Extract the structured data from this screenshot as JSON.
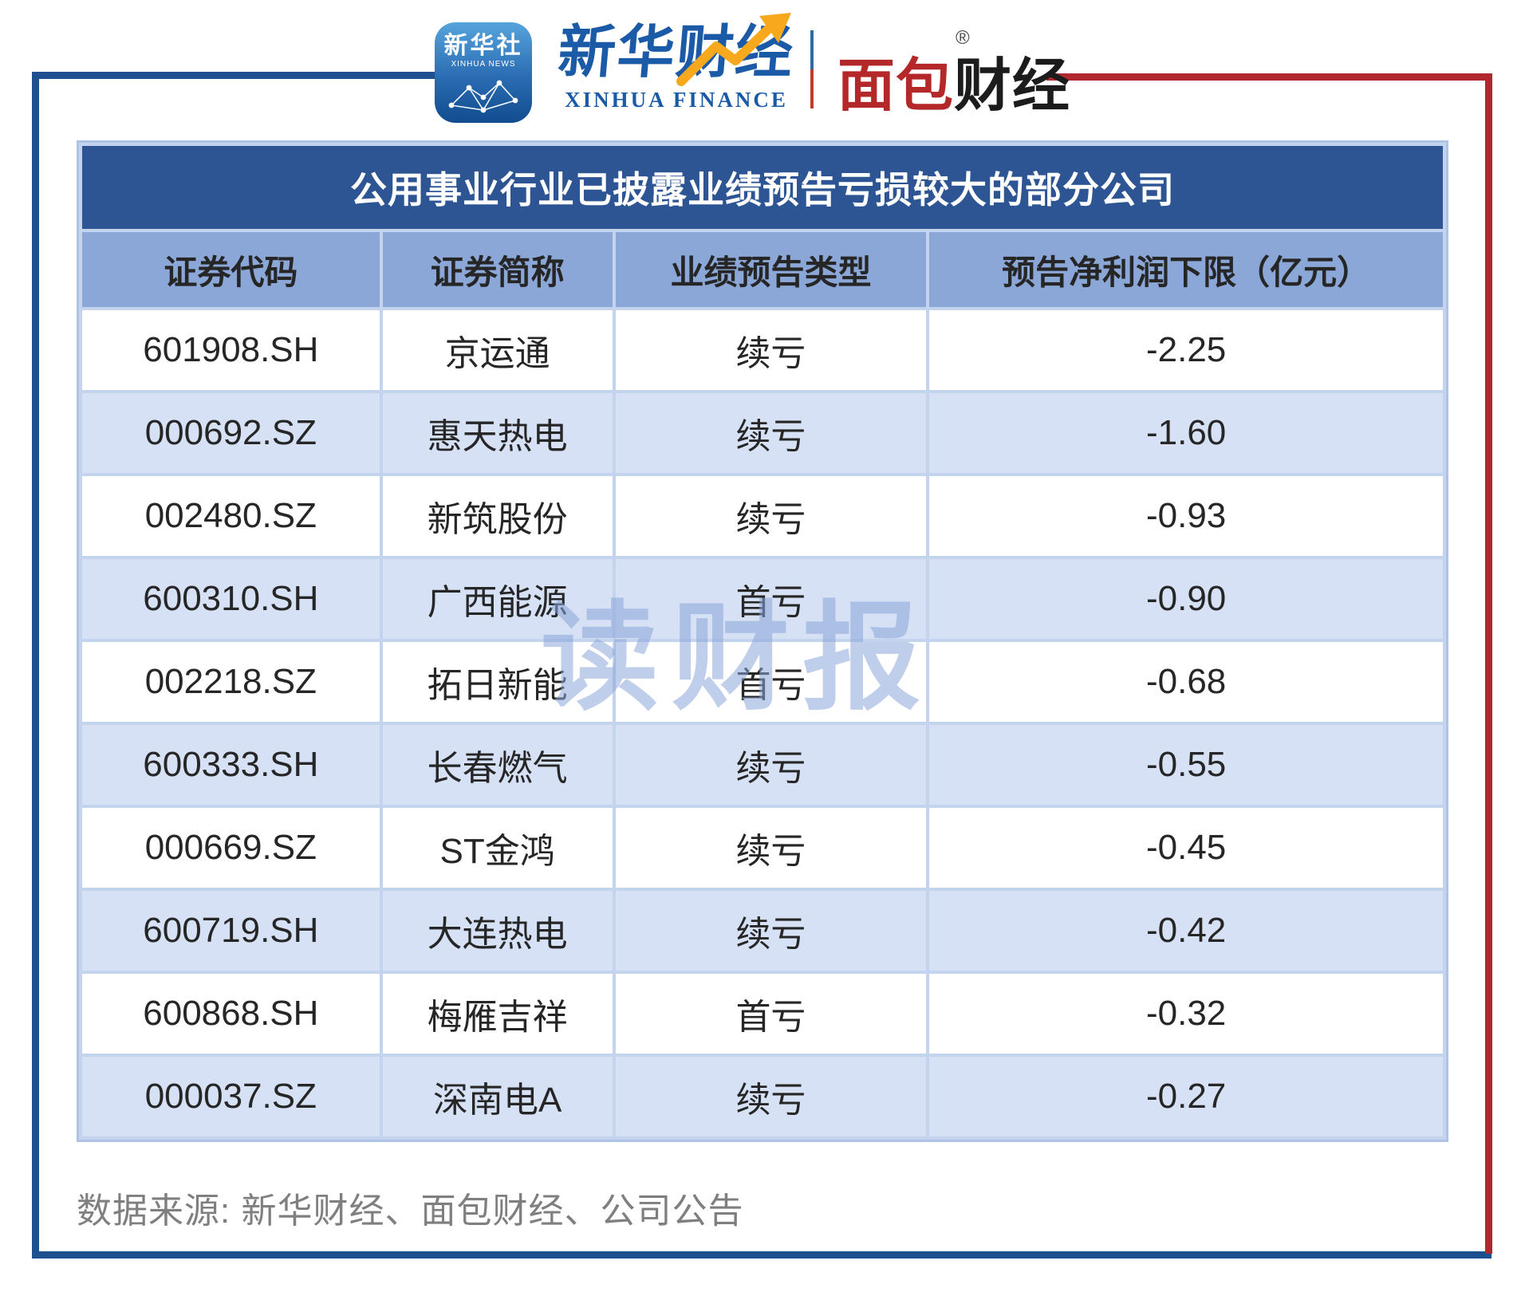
{
  "brand": {
    "xinhua_app": {
      "cn": "新华社",
      "en": "XINHUA NEWS"
    },
    "xinhua_finance": {
      "cn": "新华财经",
      "en": "XINHUA FINANCE"
    },
    "mianbao": {
      "red": "面包",
      "black": "财经",
      "reg": "®"
    }
  },
  "chart_data": {
    "type": "table",
    "title": "公用事业行业已披露业绩预告亏损较大的部分公司",
    "columns": [
      "证券代码",
      "证券简称",
      "业绩预告类型",
      "预告净利润下限（亿元）"
    ],
    "rows": [
      [
        "601908.SH",
        "京运通",
        "续亏",
        "-2.25"
      ],
      [
        "000692.SZ",
        "惠天热电",
        "续亏",
        "-1.60"
      ],
      [
        "002480.SZ",
        "新筑股份",
        "续亏",
        "-0.93"
      ],
      [
        "600310.SH",
        "广西能源",
        "首亏",
        "-0.90"
      ],
      [
        "002218.SZ",
        "拓日新能",
        "首亏",
        "-0.68"
      ],
      [
        "600333.SH",
        "长春燃气",
        "续亏",
        "-0.55"
      ],
      [
        "000669.SZ",
        "ST金鸿",
        "续亏",
        "-0.45"
      ],
      [
        "600719.SH",
        "大连热电",
        "续亏",
        "-0.42"
      ],
      [
        "600868.SH",
        "梅雁吉祥",
        "首亏",
        "-0.32"
      ],
      [
        "000037.SZ",
        "深南电A",
        "续亏",
        "-0.27"
      ]
    ],
    "net_profit_lower_bound_yi_yuan": [
      -2.25,
      -1.6,
      -0.93,
      -0.9,
      -0.68,
      -0.55,
      -0.45,
      -0.42,
      -0.32,
      -0.27
    ]
  },
  "watermark": "读财报",
  "footer": {
    "source": "数据来源: 新华财经、面包财经、公司公告"
  },
  "colors": {
    "frame_blue": "#1E4F8F",
    "frame_red": "#B0272E",
    "title_bg": "#2D5493",
    "header_bg": "#8BA7D7",
    "row_alt_bg": "#D6E1F5",
    "grid_bg": "#C4D3EE",
    "brand_blue": "#1A5AA6",
    "brand_red": "#B5282A",
    "arrow_yellow": "#F8A81C",
    "watermark_blue": "#8BA6D9",
    "footer_gray": "#7F7F7F"
  }
}
